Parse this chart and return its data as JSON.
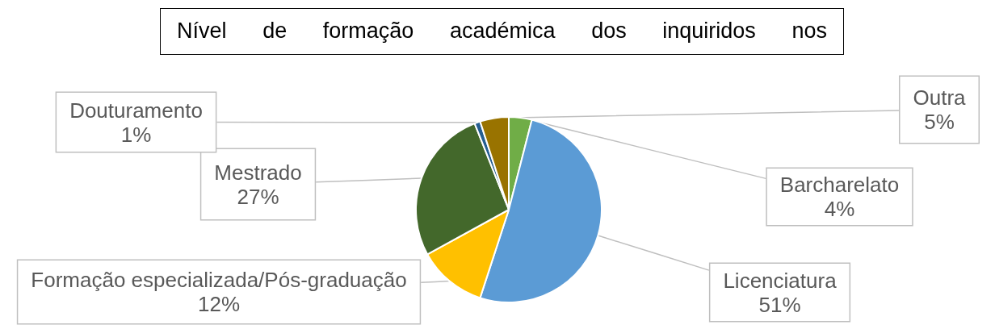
{
  "chart_data": {
    "type": "pie",
    "title": "Nível de formação académica dos inquiridos nos",
    "categories": [
      "Barcharelato",
      "Licenciatura",
      "Formação especializada/Pós-graduação",
      "Mestrado",
      "Douturamento",
      "Outra"
    ],
    "values": [
      4,
      51,
      12,
      27,
      1,
      5
    ],
    "colors": [
      "#70ad47",
      "#5b9bd5",
      "#ffc000",
      "#43682b",
      "#255e91",
      "#997300"
    ],
    "value_labels": [
      "4%",
      "51%",
      "12%",
      "27%",
      "1%",
      "5%"
    ]
  }
}
